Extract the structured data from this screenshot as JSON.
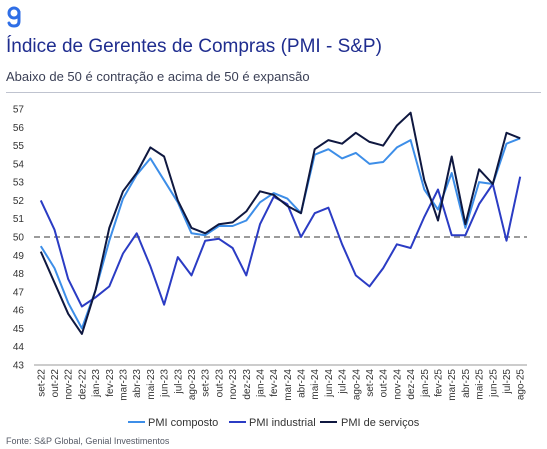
{
  "brand": {
    "logo_color": "#2f6ee6"
  },
  "title": "Índice de Gerentes de Compras (PMI - S&P)",
  "subtitle": "Abaixo de 50 é contração e acima de 50 é expansão",
  "source": "Fonte: S&P Global, Genial Investimentos",
  "chart_data": {
    "type": "line",
    "x": [
      "set-22",
      "out-22",
      "nov-22",
      "dez-22",
      "jan-23",
      "fev-23",
      "mar-23",
      "abr-23",
      "mai-23",
      "jun-23",
      "jul-23",
      "ago-23",
      "set-23",
      "out-23",
      "nov-23",
      "dez-23",
      "jan-24",
      "fev-24",
      "mar-24",
      "abr-24",
      "mai-24",
      "jun-24",
      "jul-24",
      "ago-24",
      "set-24",
      "out-24",
      "nov-24",
      "dez-24",
      "jan-25",
      "fev-25",
      "mar-25",
      "abr-25",
      "mai-25",
      "jun-25",
      "jul-25",
      "ago-25"
    ],
    "ylim": [
      43,
      57
    ],
    "yticks": [
      43,
      44,
      45,
      46,
      47,
      48,
      49,
      50,
      51,
      52,
      53,
      54,
      55,
      56,
      57
    ],
    "reference_line": 50,
    "series": [
      {
        "name": "PMI composto",
        "color": "#3d8ee8",
        "values": [
          49.5,
          48.3,
          46.4,
          45.0,
          47.1,
          49.8,
          52.1,
          53.4,
          54.3,
          53.1,
          51.9,
          50.2,
          50.1,
          50.6,
          50.6,
          50.9,
          51.9,
          52.4,
          52.1,
          51.3,
          54.5,
          54.8,
          54.3,
          54.6,
          54.0,
          54.1,
          54.9,
          55.3,
          52.6,
          51.5,
          53.5,
          50.5,
          53.0,
          52.9,
          55.1,
          55.4
        ]
      },
      {
        "name": "PMI industrial",
        "color": "#2b3cc4",
        "values": [
          52.0,
          50.4,
          47.7,
          46.2,
          46.7,
          47.3,
          49.1,
          50.2,
          48.4,
          46.3,
          48.9,
          47.9,
          49.8,
          49.9,
          49.4,
          47.9,
          50.7,
          52.2,
          51.8,
          50.0,
          51.3,
          51.6,
          49.6,
          47.9,
          47.3,
          48.3,
          49.6,
          49.4,
          51.1,
          52.6,
          50.1,
          50.1,
          51.8,
          52.9,
          49.8,
          53.3
        ]
      },
      {
        "name": "PMI de serviços",
        "color": "#0f1840",
        "values": [
          49.2,
          47.5,
          45.8,
          44.7,
          47.1,
          50.5,
          52.5,
          53.5,
          54.9,
          54.4,
          52.0,
          50.5,
          50.2,
          50.7,
          50.8,
          51.4,
          52.5,
          52.3,
          51.7,
          51.3,
          54.8,
          55.3,
          55.1,
          55.7,
          55.2,
          55.0,
          56.1,
          56.8,
          53.1,
          50.9,
          54.4,
          50.7,
          53.7,
          52.9,
          55.7,
          55.4
        ]
      }
    ]
  }
}
